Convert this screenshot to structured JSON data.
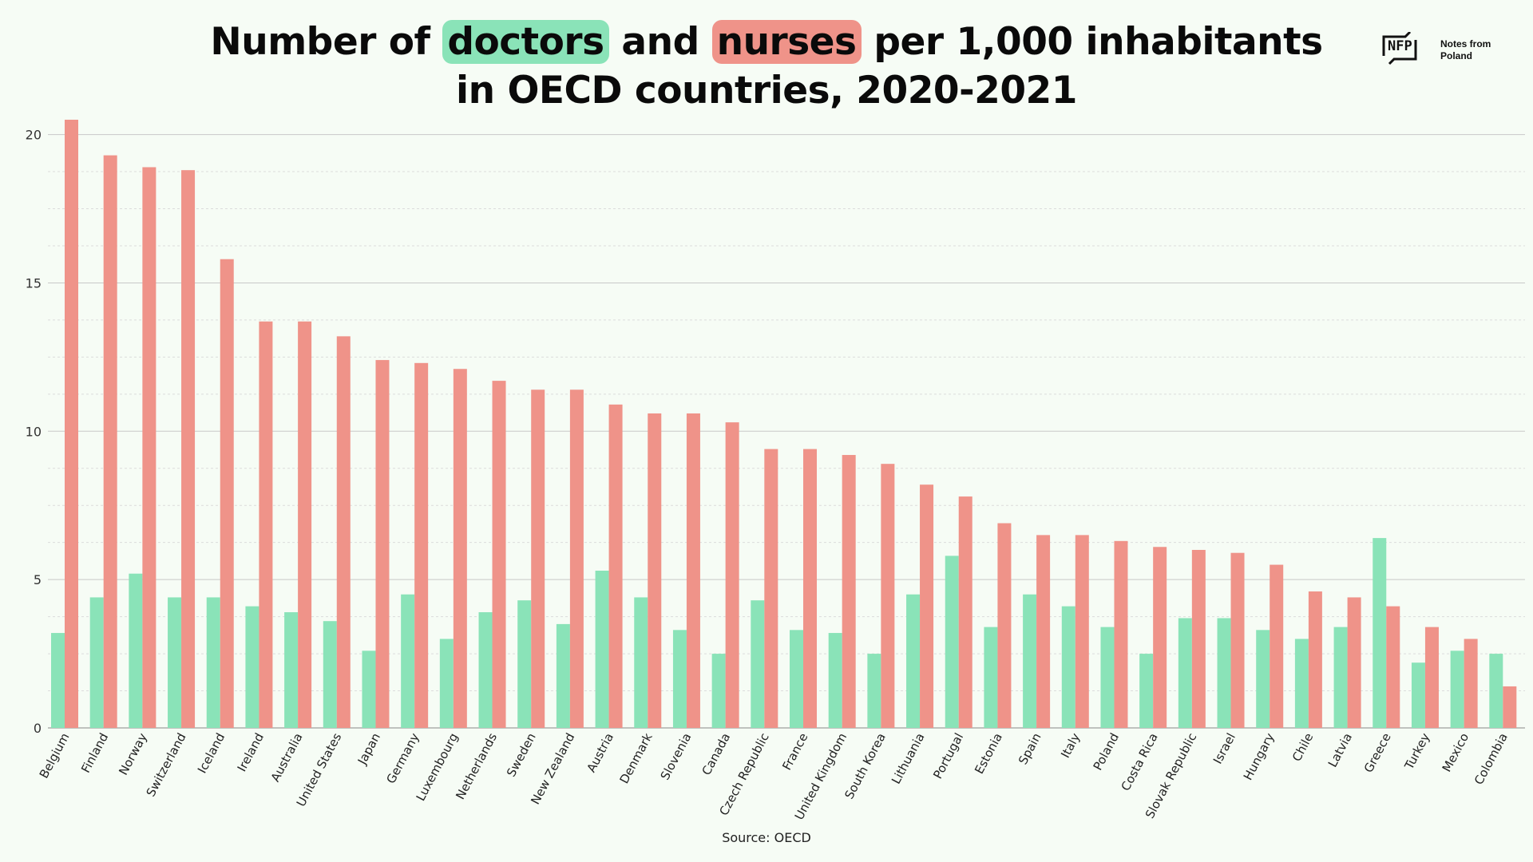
{
  "title": {
    "prefix": "Number of ",
    "doctors_word": "doctors",
    "middle": " and ",
    "nurses_word": "nurses",
    "suffix_line1": " per 1,000 inhabitants",
    "line2": "in OECD countries, 2020-2021"
  },
  "logo": {
    "mark": "NFP",
    "text_line1": "Notes from",
    "text_line2": "Poland"
  },
  "source": "Source: OECD",
  "colors": {
    "doctors": "#8ae3b8",
    "nurses": "#ef9389",
    "background": "#f6fcf5",
    "grid": "#cccccc"
  },
  "chart_data": {
    "type": "bar",
    "title": "Number of doctors and nurses per 1,000 inhabitants in OECD countries, 2020-2021",
    "xlabel": "",
    "ylabel": "",
    "ylim": [
      0,
      20.5
    ],
    "yticks": [
      0,
      5,
      10,
      15,
      20
    ],
    "grid": true,
    "legend": "none",
    "categories": [
      "Belgium",
      "Finland",
      "Norway",
      "Switzerland",
      "Iceland",
      "Ireland",
      "Australia",
      "United States",
      "Japan",
      "Germany",
      "Luxembourg",
      "Netherlands",
      "Sweden",
      "New Zealand",
      "Austria",
      "Denmark",
      "Slovenia",
      "Canada",
      "Czech Republic",
      "France",
      "United Kingdom",
      "South Korea",
      "Lithuania",
      "Portugal",
      "Estonia",
      "Spain",
      "Italy",
      "Poland",
      "Costa Rica",
      "Slovak Republic",
      "Israel",
      "Hungary",
      "Chile",
      "Latvia",
      "Greece",
      "Turkey",
      "Mexico",
      "Colombia"
    ],
    "series": [
      {
        "name": "doctors",
        "color": "#8ae3b8",
        "values": [
          3.2,
          4.4,
          5.2,
          4.4,
          4.4,
          4.1,
          3.9,
          3.6,
          2.6,
          4.5,
          3.0,
          3.9,
          4.3,
          3.5,
          5.3,
          4.4,
          3.3,
          2.5,
          4.3,
          3.3,
          3.2,
          2.5,
          4.5,
          5.8,
          3.4,
          4.5,
          4.1,
          3.4,
          2.5,
          3.7,
          3.7,
          3.3,
          3.0,
          3.4,
          6.4,
          2.2,
          2.6,
          2.5
        ]
      },
      {
        "name": "nurses",
        "color": "#ef9389",
        "values": [
          20.5,
          19.3,
          18.9,
          18.8,
          15.8,
          13.7,
          13.7,
          13.2,
          12.4,
          12.3,
          12.1,
          11.7,
          11.4,
          11.4,
          10.9,
          10.6,
          10.6,
          10.3,
          9.4,
          9.4,
          9.2,
          8.9,
          8.2,
          7.8,
          6.9,
          6.5,
          6.5,
          6.3,
          6.1,
          6.0,
          5.9,
          5.5,
          4.6,
          4.4,
          4.1,
          3.4,
          3.0,
          1.4
        ]
      }
    ]
  }
}
